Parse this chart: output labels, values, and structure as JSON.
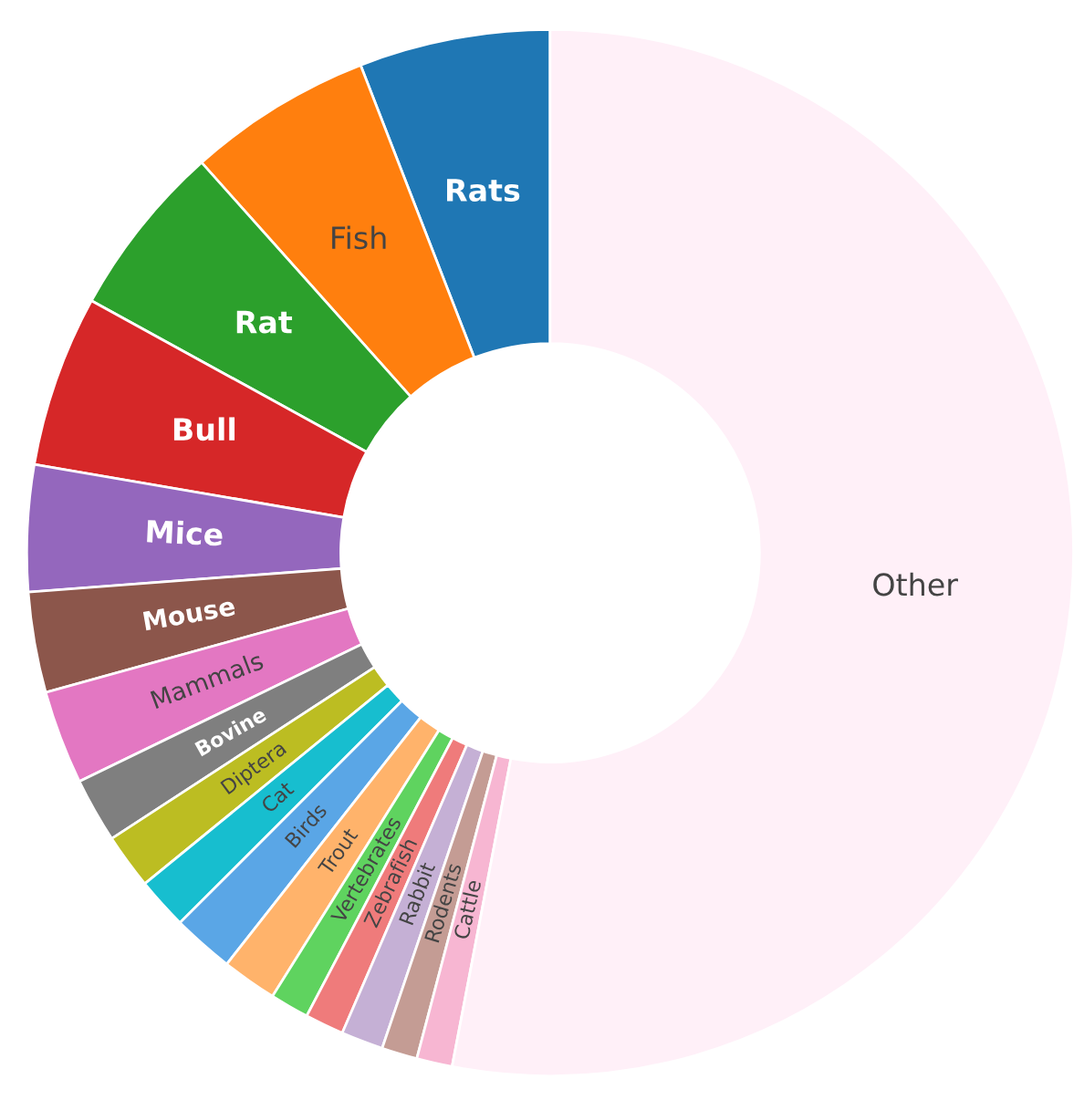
{
  "chart_data": {
    "type": "donut",
    "categories": [
      "Rats",
      "Fish",
      "Rat",
      "Bull",
      "Mice",
      "Mouse",
      "Mammals",
      "Bovine",
      "Diptera",
      "Cat",
      "Birds",
      "Trout",
      "Vertebrates",
      "Zebrafish",
      "Rabbit",
      "Rodents",
      "Cattle",
      "Other"
    ],
    "values": [
      5.9,
      5.7,
      5.4,
      5.3,
      3.9,
      3.1,
      2.9,
      2.0,
      1.7,
      1.6,
      1.9,
      1.7,
      1.2,
      1.2,
      1.3,
      1.1,
      1.1,
      53.0
    ],
    "colors": [
      "#1f77b4",
      "#ff7f0e",
      "#2ca02c",
      "#d62728",
      "#9467bd",
      "#8c564b",
      "#e377c2",
      "#7f7f7f",
      "#bcbd22",
      "#17becf",
      "#5aa6e6",
      "#ffb36b",
      "#5fd35f",
      "#ef7b7b",
      "#c5b0d5",
      "#c49c94",
      "#f7b6d2",
      "#fff0f8"
    ],
    "legend": false
  }
}
